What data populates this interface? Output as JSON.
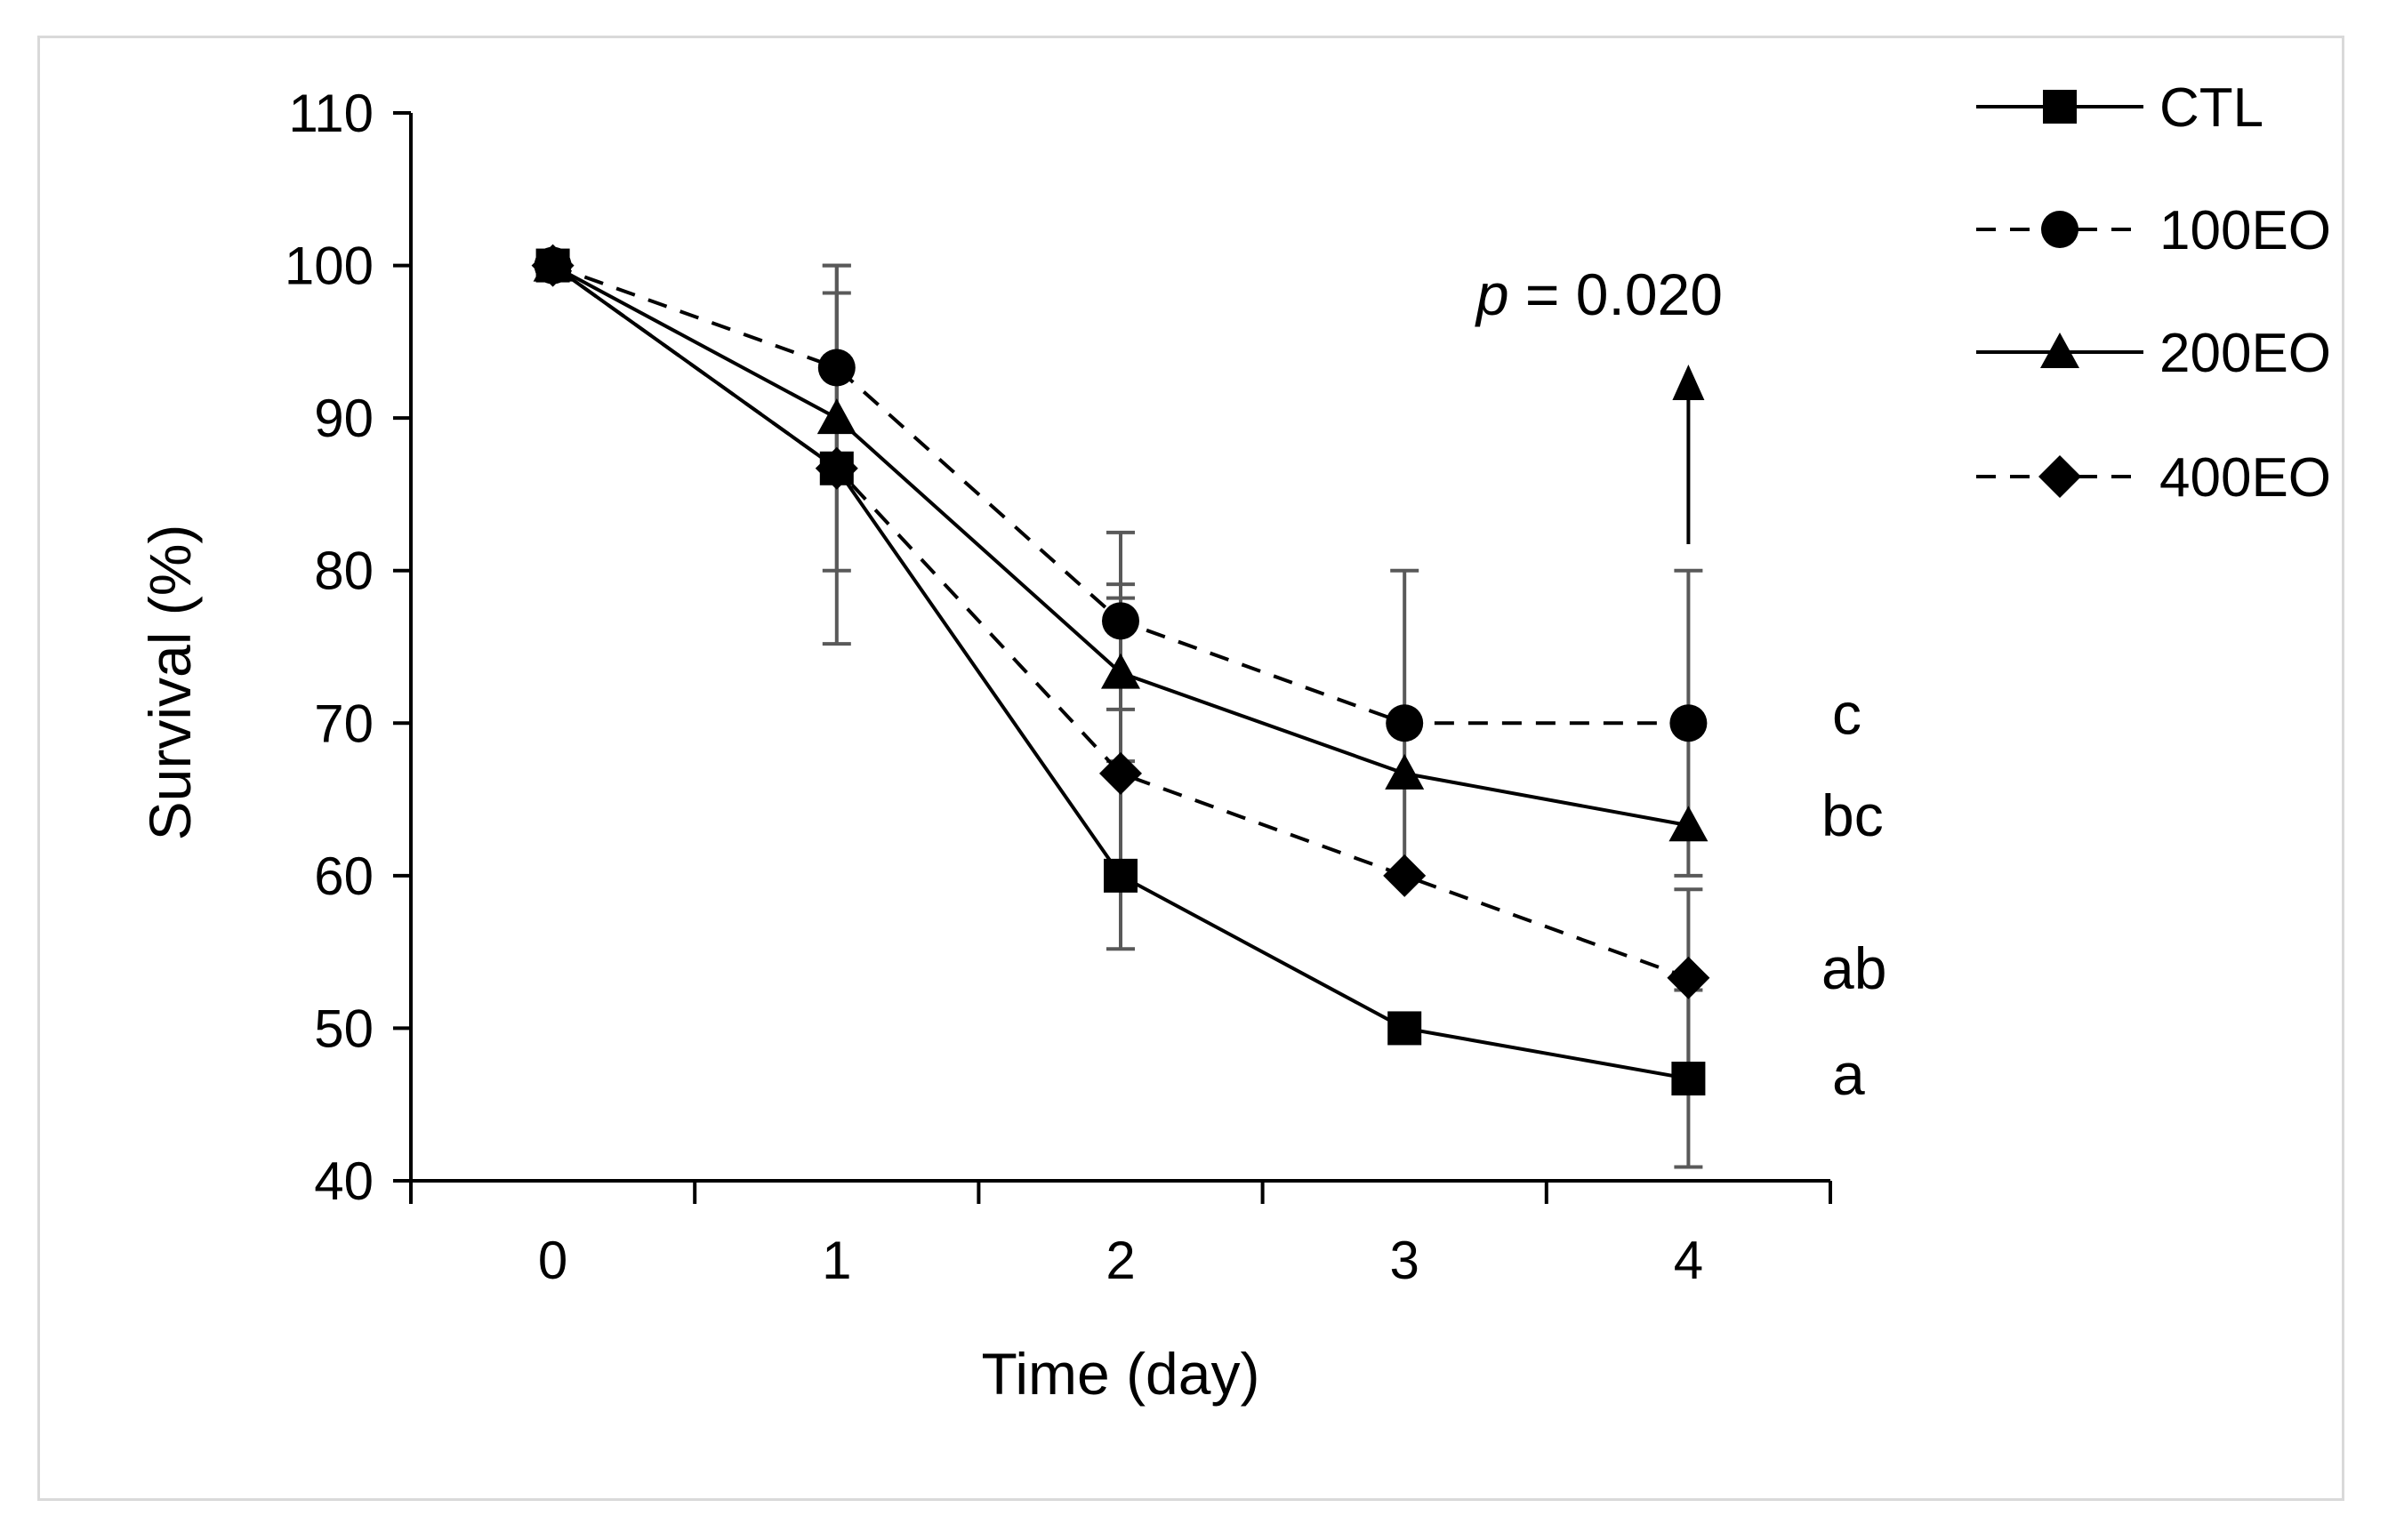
{
  "chart_data": {
    "type": "line",
    "title": "",
    "xlabel": "Time (day)",
    "ylabel": "Survival (%)",
    "x": [
      0,
      1,
      2,
      3,
      4
    ],
    "xlim": [
      -0.5,
      4.5
    ],
    "ylim": [
      40,
      110
    ],
    "yticks": [
      40,
      50,
      60,
      70,
      80,
      90,
      100,
      110
    ],
    "grid": false,
    "legend_position": "right",
    "series": [
      {
        "name": "CTL",
        "marker": "square",
        "dash": "solid",
        "values": [
          100,
          86.7,
          60,
          50,
          46.7
        ],
        "error": [
          0,
          0,
          0,
          0,
          5.8
        ]
      },
      {
        "name": "100EO",
        "marker": "circle",
        "dash": "dashed",
        "values": [
          100,
          93.3,
          76.7,
          70,
          70
        ],
        "error": [
          0,
          6.7,
          5.8,
          10,
          10
        ]
      },
      {
        "name": "200EO",
        "marker": "triangle",
        "dash": "solid",
        "values": [
          100,
          90,
          73.3,
          66.7,
          63.3
        ],
        "error": [
          0,
          10,
          5.8,
          0,
          0
        ]
      },
      {
        "name": "400EO",
        "marker": "diamond",
        "dash": "dashed",
        "values": [
          100,
          86.7,
          66.7,
          60,
          53.3
        ],
        "error": [
          0,
          11.5,
          11.5,
          0,
          5.8
        ]
      }
    ],
    "annotations": {
      "significance": [
        {
          "series": "100EO",
          "text": "c"
        },
        {
          "series": "200EO",
          "text": "bc"
        },
        {
          "series": "400EO",
          "text": "ab"
        },
        {
          "series": "CTL",
          "text": "a"
        }
      ],
      "p_symbol": "p",
      "p_value": "= 0.020"
    }
  }
}
